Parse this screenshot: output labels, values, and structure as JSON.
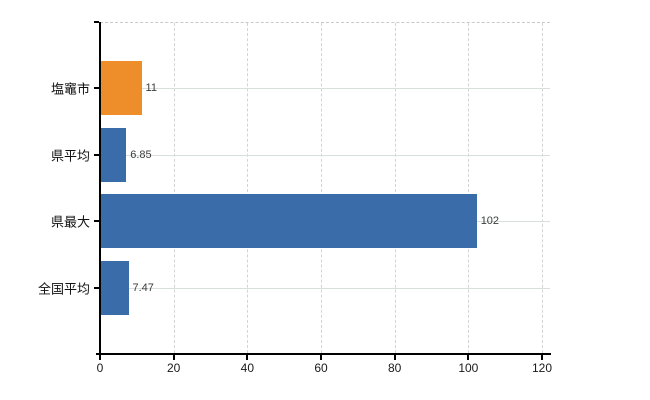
{
  "chart_data": {
    "type": "bar",
    "orientation": "horizontal",
    "title": "",
    "xlabel": "",
    "ylabel": "",
    "categories": [
      "塩竈市",
      "県平均",
      "県最大",
      "全国平均"
    ],
    "values": [
      11,
      6.85,
      102,
      7.47
    ],
    "value_labels": [
      "11",
      "6.85",
      "102",
      "7.47"
    ],
    "bar_colors": [
      "#ee8e2b",
      "#3a6ca9",
      "#3a6ca9",
      "#3a6ca9"
    ],
    "x_ticks": [
      0,
      20,
      40,
      60,
      80,
      100,
      120
    ],
    "x_tick_labels": [
      "0",
      "20",
      "40",
      "60",
      "80",
      "100",
      "120"
    ],
    "xlim": [
      0,
      122
    ],
    "grid": true,
    "legend": "none"
  },
  "colors": {
    "background": "#ffffff",
    "bar_orange": "#ee8e2b",
    "bar_blue": "#3a6ca9",
    "axis": "#000000",
    "grid_vertical": "#d3d3d3",
    "grid_horizontal": "#d9e0d9",
    "value_label": "#3b3b3b",
    "tick_label": "#1a1a1a"
  }
}
